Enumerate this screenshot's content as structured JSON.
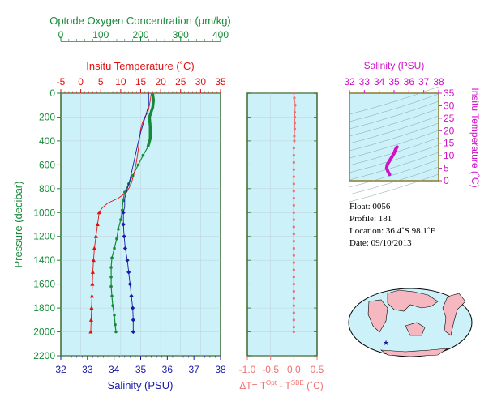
{
  "colors": {
    "oxygen": "#178a3a",
    "temperature": "#e01010",
    "salinity": "#1a1aa6",
    "delta_t": "#f07070",
    "ts_diagram": "#d012c8",
    "panel_bg": "#cdf1f9",
    "land": "#f6b8c0",
    "grid": "#b8c8d0"
  },
  "labels": {
    "oxygen_title": "Optode Oxygen Concentration (μm/kg)",
    "temp_title": "Insitu Temperature (˚C)",
    "pressure_label": "Pressure (decibar)",
    "salinity_bottom": "Salinity (PSU)",
    "delta_label": "ΔT= T",
    "delta_sup1": "Opt",
    "delta_mid": " - T",
    "delta_sup2": "SBE",
    "delta_tail": " (˚C)",
    "ts_salinity_title": "Salinity (PSU)",
    "ts_temp_title": "Insitu Temperature (˚C)"
  },
  "info": {
    "float": "Float:  0056",
    "profile": "Profile:  181",
    "location": "Location:  36.4˚S  98.1˚E",
    "date": "Date:  09/10/2013"
  },
  "chart_data": [
    {
      "type": "line",
      "title": "",
      "ylabel": "Pressure (decibar)",
      "ylim": [
        2200,
        0
      ],
      "y_ticks": [
        0,
        200,
        400,
        600,
        800,
        1000,
        1200,
        1400,
        1600,
        1800,
        2000,
        2200
      ],
      "axes": {
        "oxygen": {
          "label": "Optode Oxygen Concentration (μm/kg)",
          "range": [
            0,
            400
          ],
          "ticks": [
            0,
            100,
            200,
            300,
            400
          ]
        },
        "temperature": {
          "label": "Insitu Temperature (˚C)",
          "range": [
            -5,
            35
          ],
          "ticks": [
            -5,
            0,
            5,
            10,
            15,
            20,
            25,
            30,
            35
          ]
        },
        "salinity": {
          "label": "Salinity (PSU)",
          "range": [
            32,
            38
          ],
          "ticks": [
            32,
            33,
            34,
            35,
            36,
            37,
            38
          ]
        }
      },
      "series": [
        {
          "name": "Oxygen",
          "axis": "oxygen",
          "points": [
            [
              230,
              5
            ],
            [
              232,
              60
            ],
            [
              230,
              120
            ],
            [
              222,
              200
            ],
            [
              224,
              280
            ],
            [
              224,
              380
            ],
            [
              218,
              450
            ],
            [
              206,
              520
            ],
            [
              194,
              600
            ],
            [
              180,
              690
            ],
            [
              170,
              760
            ],
            [
              160,
              830
            ],
            [
              156,
              900
            ],
            [
              154,
              980
            ],
            [
              150,
              1060
            ],
            [
              144,
              1140
            ],
            [
              140,
              1220
            ],
            [
              134,
              1300
            ],
            [
              128,
              1380
            ],
            [
              126,
              1460
            ],
            [
              126,
              1540
            ],
            [
              126,
              1620
            ],
            [
              128,
              1700
            ],
            [
              130,
              1780
            ],
            [
              134,
              1860
            ],
            [
              136,
              1940
            ],
            [
              138,
              2000
            ]
          ]
        },
        {
          "name": "Temperature",
          "axis": "temperature",
          "points": [
            [
              18,
              0
            ],
            [
              17.6,
              10
            ],
            [
              17.5,
              40
            ],
            [
              17.2,
              100
            ],
            [
              16.8,
              160
            ],
            [
              16,
              200
            ],
            [
              15.4,
              250
            ],
            [
              15,
              300
            ],
            [
              14.7,
              380
            ],
            [
              14.5,
              450
            ],
            [
              14.2,
              520
            ],
            [
              13.8,
              600
            ],
            [
              13.3,
              680
            ],
            [
              12.6,
              760
            ],
            [
              11.5,
              830
            ],
            [
              9.4,
              880
            ],
            [
              6.8,
              920
            ],
            [
              5.4,
              960
            ],
            [
              4.6,
              1000
            ],
            [
              4.2,
              1100
            ],
            [
              3.8,
              1200
            ],
            [
              3.4,
              1300
            ],
            [
              3.2,
              1400
            ],
            [
              3.0,
              1500
            ],
            [
              2.9,
              1600
            ],
            [
              2.8,
              1700
            ],
            [
              2.7,
              1800
            ],
            [
              2.6,
              1900
            ],
            [
              2.5,
              2000
            ]
          ]
        },
        {
          "name": "Salinity",
          "axis": "salinity",
          "points": [
            [
              35.3,
              0
            ],
            [
              35.3,
              40
            ],
            [
              35.3,
              100
            ],
            [
              35.2,
              180
            ],
            [
              35.1,
              250
            ],
            [
              35.0,
              330
            ],
            [
              34.9,
              420
            ],
            [
              34.8,
              520
            ],
            [
              34.7,
              620
            ],
            [
              34.6,
              720
            ],
            [
              34.5,
              800
            ],
            [
              34.4,
              880
            ],
            [
              34.4,
              950
            ],
            [
              34.35,
              1000
            ],
            [
              34.35,
              1100
            ],
            [
              34.38,
              1200
            ],
            [
              34.42,
              1300
            ],
            [
              34.5,
              1400
            ],
            [
              34.55,
              1500
            ],
            [
              34.6,
              1600
            ],
            [
              34.65,
              1700
            ],
            [
              34.7,
              1800
            ],
            [
              34.72,
              1900
            ],
            [
              34.72,
              2000
            ]
          ]
        }
      ]
    },
    {
      "type": "scatter",
      "title": "",
      "xlabel": "ΔT= T^Opt - T^SBE (˚C)",
      "xlim": [
        -1.0,
        0.5
      ],
      "x_ticks": [
        -1.0,
        -0.5,
        0.0,
        0.5
      ],
      "ylim": [
        2200,
        0
      ],
      "series": [
        {
          "name": "ΔT",
          "points": [
            [
              0.0,
              0
            ],
            [
              0.01,
              40
            ],
            [
              0.03,
              100
            ],
            [
              0.02,
              160
            ],
            [
              0.02,
              200
            ],
            [
              0.02,
              250
            ],
            [
              0.02,
              300
            ],
            [
              0.01,
              360
            ],
            [
              0.01,
              400
            ],
            [
              0.0,
              460
            ],
            [
              0.0,
              520
            ],
            [
              0.0,
              580
            ],
            [
              0.0,
              640
            ],
            [
              0.0,
              700
            ],
            [
              0.0,
              760
            ],
            [
              0.0,
              820
            ],
            [
              0.0,
              880
            ],
            [
              0.0,
              940
            ],
            [
              0.0,
              1000
            ],
            [
              0.0,
              1060
            ],
            [
              0.0,
              1120
            ],
            [
              0.0,
              1180
            ],
            [
              0.0,
              1240
            ],
            [
              0.0,
              1300
            ],
            [
              0.0,
              1360
            ],
            [
              0.0,
              1420
            ],
            [
              0.0,
              1480
            ],
            [
              0.0,
              1540
            ],
            [
              0.0,
              1600
            ],
            [
              0.0,
              1660
            ],
            [
              0.0,
              1720
            ],
            [
              0.0,
              1780
            ],
            [
              0.0,
              1840
            ],
            [
              0.0,
              1900
            ],
            [
              0.0,
              1960
            ],
            [
              0.0,
              2000
            ]
          ]
        }
      ]
    },
    {
      "type": "scatter",
      "title": "",
      "xlabel": "Salinity (PSU)",
      "ylabel": "Insitu Temperature (˚C)",
      "xlim": [
        32,
        38
      ],
      "ylim": [
        0,
        35
      ],
      "x_ticks": [
        32,
        33,
        34,
        35,
        36,
        37,
        38
      ],
      "y_ticks": [
        0,
        5,
        10,
        15,
        20,
        25,
        30,
        35
      ],
      "series": [
        {
          "name": "T-S",
          "points": [
            [
              34.7,
              2.5
            ],
            [
              34.6,
              3.5
            ],
            [
              34.5,
              5
            ],
            [
              34.55,
              6.5
            ],
            [
              34.7,
              8
            ],
            [
              34.85,
              9.5
            ],
            [
              35.0,
              11
            ],
            [
              35.1,
              12.5
            ],
            [
              35.2,
              13.5
            ]
          ]
        }
      ]
    }
  ]
}
